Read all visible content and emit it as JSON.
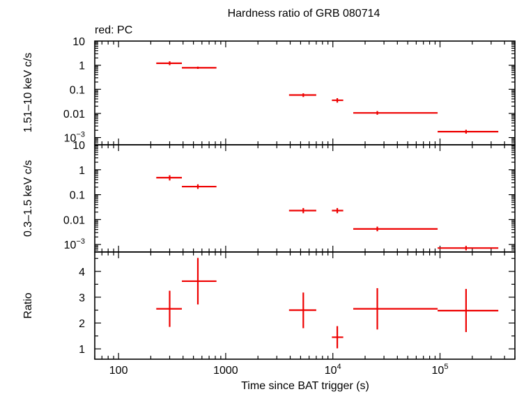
{
  "chart_data": {
    "type": "scatter",
    "title": "Hardness ratio of GRB 080714",
    "subtitle": "red: PC",
    "xlabel": "Time since BAT trigger (s)",
    "xscale": "log",
    "xlim": [
      60,
      500000
    ],
    "x_ticks": [
      {
        "value": 100,
        "base": "100",
        "exp": ""
      },
      {
        "value": 1000,
        "base": "1000",
        "exp": ""
      },
      {
        "value": 10000,
        "base": "10",
        "exp": "4"
      },
      {
        "value": 100000,
        "base": "10",
        "exp": "5"
      }
    ],
    "series_color": "#ee0000",
    "panels": [
      {
        "name": "hard-band",
        "ylabel": "1.51–10 keV c/s",
        "yscale": "log",
        "ylim": [
          0.0005,
          10
        ],
        "y_ticks": [
          {
            "value": 10,
            "base": "10",
            "exp": ""
          },
          {
            "value": 1,
            "base": "1",
            "exp": ""
          },
          {
            "value": 0.1,
            "base": "0.1",
            "exp": ""
          },
          {
            "value": 0.01,
            "base": "0.01",
            "exp": ""
          },
          {
            "value": 0.001,
            "base": "10",
            "exp": "−3"
          }
        ],
        "points": [
          {
            "x": 300,
            "x_lo": 225,
            "x_hi": 390,
            "y": 1.2,
            "y_lo": 1.0,
            "y_hi": 1.45
          },
          {
            "x": 550,
            "x_lo": 390,
            "x_hi": 820,
            "y": 0.78,
            "y_lo": 0.7,
            "y_hi": 0.87
          },
          {
            "x": 5300,
            "x_lo": 3900,
            "x_hi": 7000,
            "y": 0.058,
            "y_lo": 0.048,
            "y_hi": 0.068
          },
          {
            "x": 11000,
            "x_lo": 9800,
            "x_hi": 12500,
            "y": 0.035,
            "y_lo": 0.028,
            "y_hi": 0.043
          },
          {
            "x": 26000,
            "x_lo": 15500,
            "x_hi": 95000,
            "y": 0.0105,
            "y_lo": 0.0088,
            "y_hi": 0.0125
          },
          {
            "x": 175000,
            "x_lo": 95000,
            "x_hi": 350000,
            "y": 0.00175,
            "y_lo": 0.00145,
            "y_hi": 0.0021
          }
        ]
      },
      {
        "name": "soft-band",
        "ylabel": "0.3–1.5 keV c/s",
        "yscale": "log",
        "ylim": [
          0.0005,
          10
        ],
        "y_ticks": [
          {
            "value": 10,
            "base": "10",
            "exp": ""
          },
          {
            "value": 1,
            "base": "1",
            "exp": ""
          },
          {
            "value": 0.1,
            "base": "0.1",
            "exp": ""
          },
          {
            "value": 0.01,
            "base": "0.01",
            "exp": ""
          },
          {
            "value": 0.001,
            "base": "10",
            "exp": "−3"
          }
        ],
        "points": [
          {
            "x": 300,
            "x_lo": 225,
            "x_hi": 390,
            "y": 0.48,
            "y_lo": 0.37,
            "y_hi": 0.6
          },
          {
            "x": 550,
            "x_lo": 390,
            "x_hi": 820,
            "y": 0.21,
            "y_lo": 0.17,
            "y_hi": 0.26
          },
          {
            "x": 5300,
            "x_lo": 3900,
            "x_hi": 7000,
            "y": 0.023,
            "y_lo": 0.018,
            "y_hi": 0.029
          },
          {
            "x": 11000,
            "x_lo": 9800,
            "x_hi": 12500,
            "y": 0.023,
            "y_lo": 0.018,
            "y_hi": 0.029
          },
          {
            "x": 26000,
            "x_lo": 15500,
            "x_hi": 95000,
            "y": 0.0042,
            "y_lo": 0.0034,
            "y_hi": 0.0052
          },
          {
            "x": 175000,
            "x_lo": 95000,
            "x_hi": 350000,
            "y": 0.00072,
            "y_lo": 0.00058,
            "y_hi": 0.00088
          }
        ]
      },
      {
        "name": "ratio",
        "ylabel": "Ratio",
        "yscale": "linear",
        "ylim": [
          0.6,
          4.75
        ],
        "y_ticks": [
          {
            "value": 1,
            "base": "1",
            "exp": ""
          },
          {
            "value": 2,
            "base": "2",
            "exp": ""
          },
          {
            "value": 3,
            "base": "3",
            "exp": ""
          },
          {
            "value": 4,
            "base": "4",
            "exp": ""
          }
        ],
        "points": [
          {
            "x": 300,
            "x_lo": 225,
            "x_hi": 390,
            "y": 2.55,
            "y_lo": 1.85,
            "y_hi": 3.25
          },
          {
            "x": 550,
            "x_lo": 390,
            "x_hi": 820,
            "y": 3.62,
            "y_lo": 2.72,
            "y_hi": 4.52
          },
          {
            "x": 5300,
            "x_lo": 3900,
            "x_hi": 7000,
            "y": 2.5,
            "y_lo": 1.8,
            "y_hi": 3.18
          },
          {
            "x": 11000,
            "x_lo": 9800,
            "x_hi": 12500,
            "y": 1.45,
            "y_lo": 1.02,
            "y_hi": 1.88
          },
          {
            "x": 26000,
            "x_lo": 15500,
            "x_hi": 95000,
            "y": 2.55,
            "y_lo": 1.75,
            "y_hi": 3.35
          },
          {
            "x": 175000,
            "x_lo": 95000,
            "x_hi": 350000,
            "y": 2.48,
            "y_lo": 1.65,
            "y_hi": 3.32
          }
        ]
      }
    ]
  }
}
